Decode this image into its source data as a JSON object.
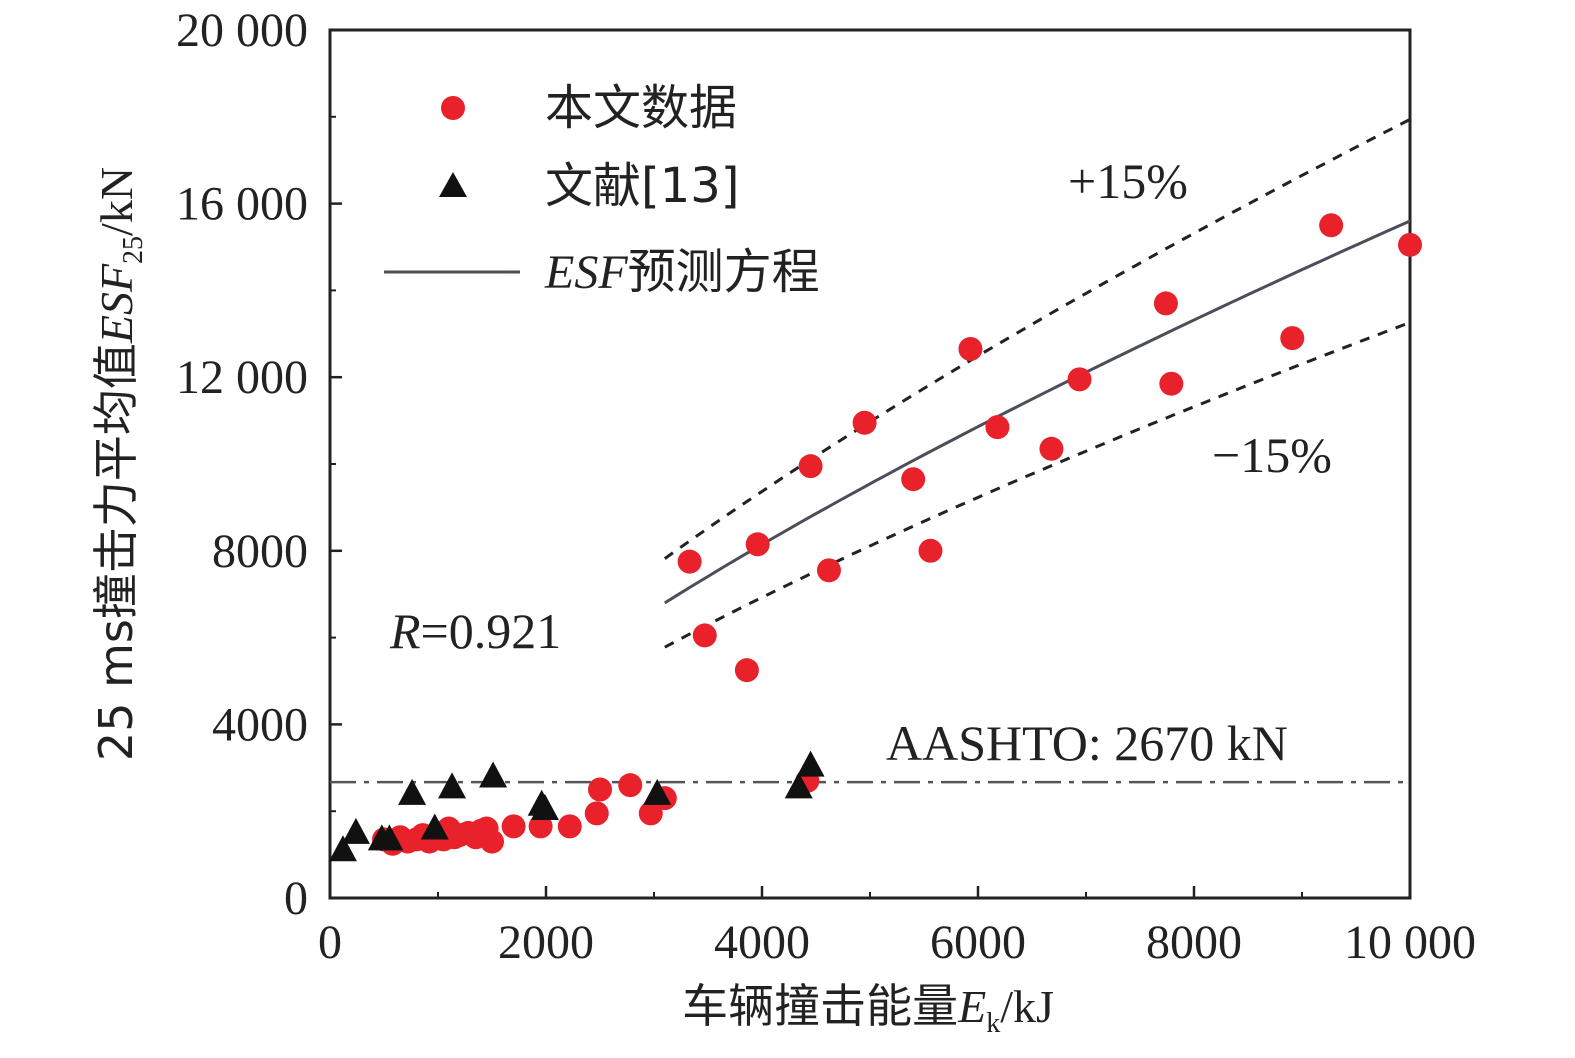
{
  "chart_data": {
    "type": "scatter",
    "xlabel": {
      "main": "车辆撞击能量",
      "var": "E",
      "sub": "k",
      "unit": "/kJ"
    },
    "ylabel": {
      "prefix": "25 ms撞击力平均值",
      "var": "ESF",
      "sub": "25",
      "unit": "/kN"
    },
    "xlim": [
      0,
      10000
    ],
    "ylim": [
      0,
      20000
    ],
    "x_ticks": [
      0,
      2000,
      4000,
      6000,
      8000,
      10000
    ],
    "x_tick_labels": [
      "0",
      "2000",
      "4000",
      "6000",
      "8000",
      "10 000"
    ],
    "y_ticks": [
      0,
      4000,
      8000,
      12000,
      16000,
      20000
    ],
    "y_tick_labels": [
      "0",
      "4000",
      "8000",
      "12 000",
      "16 000",
      "20 000"
    ],
    "grid": false,
    "legend_position": "top-left",
    "legend": [
      {
        "label": "本文数据",
        "marker": "circle"
      },
      {
        "label": "文献[13]",
        "marker": "triangle"
      },
      {
        "label_var": "ESF",
        "label_rest": "预测方程",
        "marker": "line"
      }
    ],
    "series": [
      {
        "name": "本文数据",
        "marker": "circle",
        "color": "#e8212b",
        "points": [
          [
            500,
            1350
          ],
          [
            580,
            1250
          ],
          [
            650,
            1400
          ],
          [
            720,
            1300
          ],
          [
            800,
            1350
          ],
          [
            860,
            1450
          ],
          [
            920,
            1300
          ],
          [
            1000,
            1500
          ],
          [
            1050,
            1350
          ],
          [
            1100,
            1600
          ],
          [
            1150,
            1400
          ],
          [
            1200,
            1450
          ],
          [
            1280,
            1500
          ],
          [
            1350,
            1400
          ],
          [
            1400,
            1550
          ],
          [
            1450,
            1600
          ],
          [
            1500,
            1300
          ],
          [
            1700,
            1650
          ],
          [
            1950,
            1650
          ],
          [
            2220,
            1650
          ],
          [
            2470,
            1950
          ],
          [
            2500,
            2500
          ],
          [
            2780,
            2600
          ],
          [
            2970,
            1950
          ],
          [
            3100,
            2300
          ],
          [
            3330,
            7750
          ],
          [
            3470,
            6050
          ],
          [
            3860,
            5250
          ],
          [
            3960,
            8150
          ],
          [
            4420,
            2700
          ],
          [
            4450,
            9950
          ],
          [
            4620,
            7550
          ],
          [
            4950,
            10950
          ],
          [
            5400,
            9650
          ],
          [
            5560,
            8000
          ],
          [
            5930,
            12650
          ],
          [
            6180,
            10850
          ],
          [
            6680,
            10350
          ],
          [
            6940,
            11950
          ],
          [
            7740,
            13700
          ],
          [
            7790,
            11850
          ],
          [
            8910,
            12900
          ],
          [
            9270,
            15500
          ],
          [
            10000,
            15050
          ]
        ]
      },
      {
        "name": "文献[13]",
        "marker": "triangle",
        "color": "#111111",
        "points": [
          [
            120,
            1100
          ],
          [
            240,
            1500
          ],
          [
            480,
            1350
          ],
          [
            550,
            1350
          ],
          [
            760,
            2400
          ],
          [
            970,
            1600
          ],
          [
            1130,
            2550
          ],
          [
            1510,
            2800
          ],
          [
            1960,
            2150
          ],
          [
            1990,
            2050
          ],
          [
            3030,
            2400
          ],
          [
            4340,
            2550
          ],
          [
            4450,
            3050
          ]
        ]
      }
    ],
    "fit_line": {
      "x_range": [
        3100,
        10000
      ],
      "power": 0.709,
      "anchor": [
        10000,
        15600
      ]
    },
    "bands": {
      "upper_factor": 1.15,
      "lower_factor": 0.85
    },
    "hline": {
      "y": 2670,
      "label": "AASHTO: 2670 kN"
    },
    "annotations": {
      "upper_band_label": "+15%",
      "lower_band_label": "−15%",
      "r_var": "R",
      "r_value": "=0.921"
    },
    "colors": {
      "circle": "#e8212b",
      "triangle": "#111111",
      "fit_line": "#4a4f5a",
      "bands": "#222222",
      "hline": "#555555",
      "axis": "#222222"
    }
  }
}
